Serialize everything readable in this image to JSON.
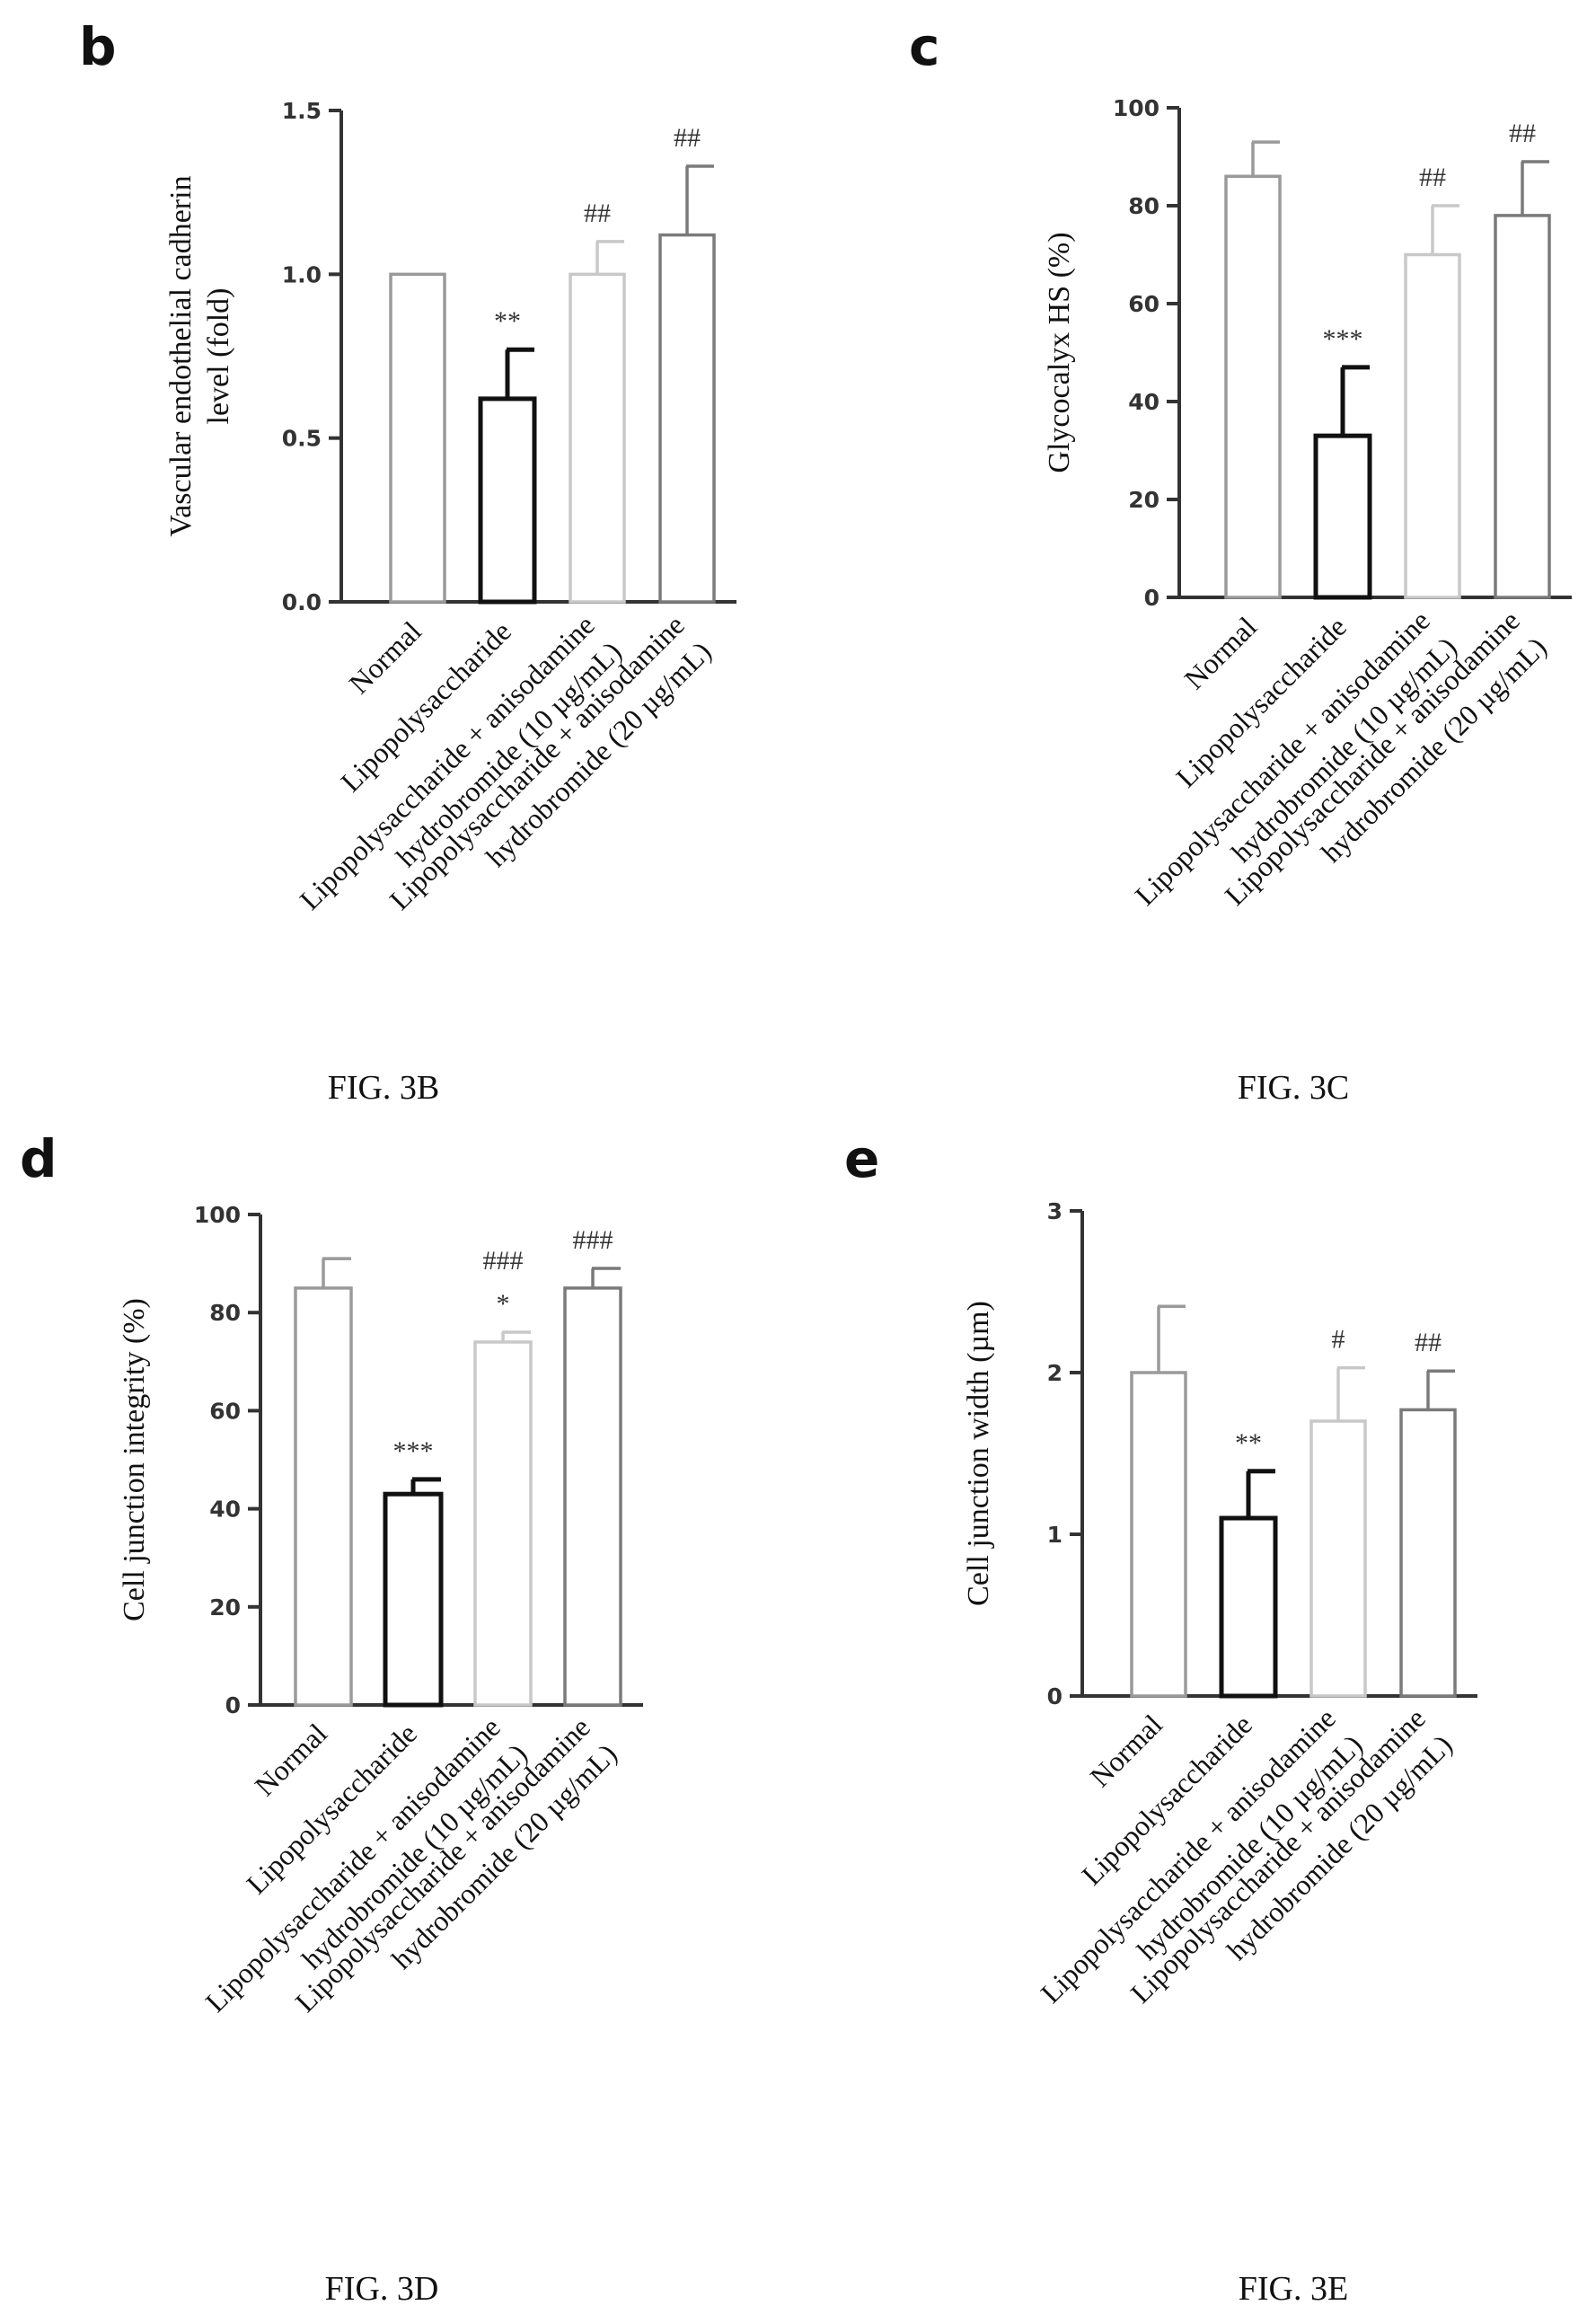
{
  "chart_data": [
    {
      "type": "bar",
      "panel_letter": "b",
      "caption": "FIG. 3B",
      "ylabel_lines": [
        "Vascular endothelial cadherin",
        "level (fold)"
      ],
      "ylim": [
        0,
        1.5
      ],
      "yticks": [
        0.0,
        0.5,
        1.0,
        1.5
      ],
      "ytick_labels": [
        "0.0",
        "0.5",
        "1.0",
        "1.5"
      ],
      "categories": [
        [
          "Normal"
        ],
        [
          "Lipopolysaccharide"
        ],
        [
          "Lipopolysaccharide + anisodamine",
          "hydrobromide (10 µg/mL)"
        ],
        [
          "Lipopolysaccharide + anisodamine",
          "hydrobromide (20 µg/mL)"
        ]
      ],
      "values": [
        1.0,
        0.62,
        1.0,
        1.12
      ],
      "errors": [
        0,
        0.15,
        0.1,
        0.21
      ],
      "annotations": [
        [],
        [
          "**"
        ],
        [
          "##"
        ],
        [
          "##"
        ]
      ],
      "bar_colors": [
        "#9a9a9a",
        "#111111",
        "#c8c8c8",
        "#7a7a7a"
      ]
    },
    {
      "type": "bar",
      "panel_letter": "c",
      "caption": "FIG. 3C",
      "ylabel_lines": [
        "Glycocalyx HS (%)"
      ],
      "ylim": [
        0,
        100
      ],
      "yticks": [
        0,
        20,
        40,
        60,
        80,
        100
      ],
      "ytick_labels": [
        "0",
        "20",
        "40",
        "60",
        "80",
        "100"
      ],
      "categories": [
        [
          "Normal"
        ],
        [
          "Lipopolysaccharide"
        ],
        [
          "Lipopolysaccharide + anisodamine",
          "hydrobromide (10 µg/mL)"
        ],
        [
          "Lipopolysaccharide + anisodamine",
          "hydrobromide (20 µg/mL)"
        ]
      ],
      "values": [
        86,
        33,
        70,
        78
      ],
      "errors": [
        7,
        14,
        10,
        11
      ],
      "annotations": [
        [],
        [
          "***"
        ],
        [
          "##"
        ],
        [
          "##"
        ]
      ],
      "bar_colors": [
        "#9a9a9a",
        "#111111",
        "#c8c8c8",
        "#7a7a7a"
      ]
    },
    {
      "type": "bar",
      "panel_letter": "d",
      "caption": "FIG. 3D",
      "ylabel_lines": [
        "Cell junction integrity (%)"
      ],
      "ylim": [
        0,
        100
      ],
      "yticks": [
        0,
        20,
        40,
        60,
        80,
        100
      ],
      "ytick_labels": [
        "0",
        "20",
        "40",
        "60",
        "80",
        "100"
      ],
      "categories": [
        [
          "Normal"
        ],
        [
          "Lipopolysaccharide"
        ],
        [
          "Lipopolysaccharide + anisodamine",
          "hydrobromide (10 µg/mL)"
        ],
        [
          "Lipopolysaccharide + anisodamine",
          "hydrobromide (20 µg/mL)"
        ]
      ],
      "values": [
        85,
        43,
        74,
        85
      ],
      "errors": [
        6,
        3,
        2,
        4
      ],
      "annotations": [
        [],
        [
          "***"
        ],
        [
          "*",
          "###"
        ],
        [
          "###"
        ]
      ],
      "bar_colors": [
        "#9a9a9a",
        "#111111",
        "#c8c8c8",
        "#7a7a7a"
      ]
    },
    {
      "type": "bar",
      "panel_letter": "e",
      "caption": "FIG. 3E",
      "ylabel_lines": [
        "Cell junction width (µm)"
      ],
      "ylim": [
        0,
        3
      ],
      "yticks": [
        0,
        1,
        2,
        3
      ],
      "ytick_labels": [
        "0",
        "1",
        "2",
        "3"
      ],
      "categories": [
        [
          "Normal"
        ],
        [
          "Lipopolysaccharide"
        ],
        [
          "Lipopolysaccharide + anisodamine",
          "hydrobromide (10 µg/mL)"
        ],
        [
          "Lipopolysaccharide + anisodamine",
          "hydrobromide (20 µg/mL)"
        ]
      ],
      "values": [
        2.0,
        1.1,
        1.7,
        1.77
      ],
      "errors": [
        0.41,
        0.29,
        0.33,
        0.24
      ],
      "annotations": [
        [],
        [
          "**"
        ],
        [
          "#"
        ],
        [
          "##"
        ]
      ],
      "bar_colors": [
        "#9a9a9a",
        "#111111",
        "#c8c8c8",
        "#7a7a7a"
      ]
    }
  ]
}
